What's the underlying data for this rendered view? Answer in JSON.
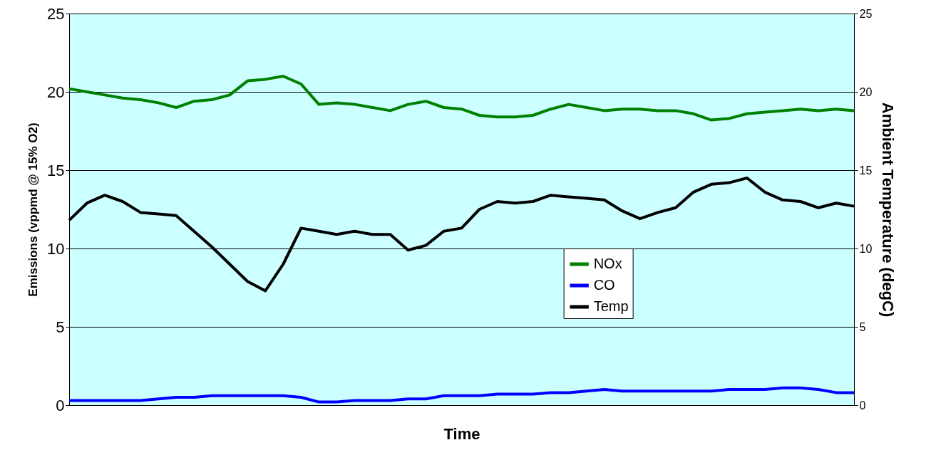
{
  "chart_data": {
    "type": "line",
    "xlabel": "Time",
    "ylabel": "Emissions (vppmd @ 15% O2)",
    "y2label": "Ambient Temperature (degC)",
    "categories": [
      null,
      null,
      null,
      null,
      null,
      null,
      null,
      null,
      null,
      null,
      null,
      null,
      null,
      null,
      null,
      null,
      null,
      null,
      null,
      null,
      null,
      null,
      null,
      null,
      null,
      null,
      null,
      null,
      null,
      null,
      null,
      null,
      null,
      null,
      null,
      null,
      null,
      null,
      null,
      null,
      null,
      null,
      null,
      null,
      null
    ],
    "series": [
      {
        "name": "NOx",
        "color": "#008000",
        "values": [
          20.2,
          20.0,
          19.8,
          19.6,
          19.5,
          19.3,
          19.0,
          19.4,
          19.5,
          19.8,
          20.7,
          20.8,
          21.0,
          20.5,
          19.2,
          19.3,
          19.2,
          19.0,
          18.8,
          19.2,
          19.4,
          19.0,
          18.9,
          18.5,
          18.4,
          18.4,
          18.5,
          18.9,
          19.2,
          19.0,
          18.8,
          18.9,
          18.9,
          18.8,
          18.8,
          18.6,
          18.2,
          18.3,
          18.6,
          18.7,
          18.8,
          18.9,
          18.8,
          18.9,
          18.8
        ]
      },
      {
        "name": "CO",
        "color": "#0000ff",
        "values": [
          0.3,
          0.3,
          0.3,
          0.3,
          0.3,
          0.4,
          0.5,
          0.5,
          0.6,
          0.6,
          0.6,
          0.6,
          0.6,
          0.5,
          0.2,
          0.2,
          0.3,
          0.3,
          0.3,
          0.4,
          0.4,
          0.6,
          0.6,
          0.6,
          0.7,
          0.7,
          0.7,
          0.8,
          0.8,
          0.9,
          1.0,
          0.9,
          0.9,
          0.9,
          0.9,
          0.9,
          0.9,
          1.0,
          1.0,
          1.0,
          1.1,
          1.1,
          1.0,
          0.8,
          0.8
        ]
      },
      {
        "name": "Temp",
        "color": "#000000",
        "axis": "y2",
        "values": [
          11.8,
          12.9,
          13.4,
          13.0,
          12.3,
          12.2,
          12.1,
          11.1,
          10.1,
          9.0,
          7.9,
          7.3,
          9.0,
          11.3,
          11.1,
          10.9,
          11.1,
          10.9,
          10.9,
          9.9,
          10.2,
          11.1,
          11.3,
          12.5,
          13.0,
          12.9,
          13.0,
          13.4,
          13.3,
          13.2,
          13.1,
          12.4,
          11.9,
          12.3,
          12.6,
          13.6,
          14.1,
          14.2,
          14.5,
          13.6,
          13.1,
          13.0,
          12.6,
          12.9,
          12.7
        ]
      }
    ],
    "ylim": [
      0,
      25
    ],
    "yticks": [
      0,
      5,
      10,
      15,
      20,
      25
    ],
    "y2lim": [
      0,
      25
    ],
    "y2ticks": [
      0,
      5,
      10,
      15,
      20,
      25
    ],
    "grid": "y",
    "legend": "center",
    "marker": "none",
    "line_style": "solid"
  }
}
